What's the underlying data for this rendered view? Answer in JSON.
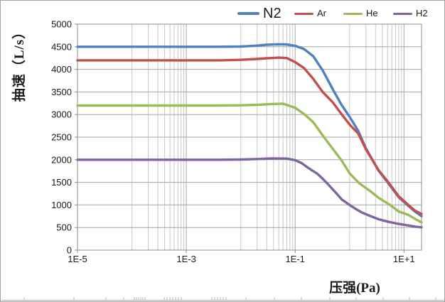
{
  "chart_data": {
    "type": "line",
    "title": "",
    "legend": {
      "position": "top",
      "entries": [
        "N2",
        "Ar",
        "He",
        "H2"
      ]
    },
    "x_axis": {
      "label": "压强(Pa)",
      "scale": "log",
      "min": 1e-05,
      "max": 21,
      "major_ticks": [
        {
          "label": "1E-5",
          "value": 1e-05
        },
        {
          "label": "1E-3",
          "value": 0.001
        },
        {
          "label": "1E-1",
          "value": 0.1
        },
        {
          "label": "1E+1",
          "value": 10
        }
      ],
      "minor_gridlines": [
        0.0001,
        0.0002,
        0.0003,
        0.0004,
        0.0005,
        0.0006,
        0.0007,
        0.0008,
        0.0009,
        0.01,
        0.02,
        0.03,
        0.04,
        0.05,
        0.06,
        0.07,
        0.08,
        0.09,
        1,
        2,
        3,
        4,
        5,
        6,
        7,
        8,
        9
      ]
    },
    "y_axis": {
      "label": "抽速（L/s）",
      "min": 0,
      "max": 5000,
      "tick_step": 500,
      "tick_labels": [
        "0",
        "500",
        "1000",
        "1500",
        "2000",
        "2500",
        "3000",
        "3500",
        "4000",
        "4500",
        "5000"
      ]
    },
    "grid_color_major": "#a6a6a6",
    "grid_color_minor": "#c9c9c9",
    "axis_color": "#8c8c8c",
    "series": [
      {
        "name": "N2",
        "color": "#4F81BD",
        "points": [
          [
            1e-05,
            4500
          ],
          [
            0.0001,
            4500
          ],
          [
            0.001,
            4500
          ],
          [
            0.004,
            4500
          ],
          [
            0.01,
            4505
          ],
          [
            0.02,
            4525
          ],
          [
            0.03,
            4545
          ],
          [
            0.05,
            4555
          ],
          [
            0.07,
            4550
          ],
          [
            0.1,
            4520
          ],
          [
            0.145,
            4450
          ],
          [
            0.215,
            4290
          ],
          [
            0.32,
            3980
          ],
          [
            0.49,
            3560
          ],
          [
            0.7,
            3230
          ],
          [
            1,
            2950
          ],
          [
            1.44,
            2640
          ],
          [
            2,
            2250
          ],
          [
            3.4,
            1760
          ],
          [
            5,
            1500
          ],
          [
            8,
            1170
          ],
          [
            12,
            980
          ],
          [
            16,
            850
          ],
          [
            21,
            750
          ]
        ]
      },
      {
        "name": "Ar",
        "color": "#C0504D",
        "points": [
          [
            1e-05,
            4200
          ],
          [
            0.0001,
            4200
          ],
          [
            0.001,
            4200
          ],
          [
            0.004,
            4200
          ],
          [
            0.01,
            4210
          ],
          [
            0.02,
            4230
          ],
          [
            0.03,
            4245
          ],
          [
            0.05,
            4260
          ],
          [
            0.07,
            4250
          ],
          [
            0.1,
            4160
          ],
          [
            0.145,
            4030
          ],
          [
            0.215,
            3790
          ],
          [
            0.32,
            3500
          ],
          [
            0.49,
            3270
          ],
          [
            0.7,
            3020
          ],
          [
            1,
            2780
          ],
          [
            1.44,
            2580
          ],
          [
            2,
            2230
          ],
          [
            3.4,
            1770
          ],
          [
            5,
            1520
          ],
          [
            8,
            1190
          ],
          [
            12,
            1000
          ],
          [
            16,
            870
          ],
          [
            21,
            800
          ]
        ]
      },
      {
        "name": "He",
        "color": "#9BBB59",
        "points": [
          [
            1e-05,
            3200
          ],
          [
            0.0001,
            3200
          ],
          [
            0.001,
            3200
          ],
          [
            0.004,
            3200
          ],
          [
            0.01,
            3205
          ],
          [
            0.02,
            3215
          ],
          [
            0.04,
            3235
          ],
          [
            0.06,
            3240
          ],
          [
            0.1,
            3150
          ],
          [
            0.15,
            3000
          ],
          [
            0.215,
            2830
          ],
          [
            0.32,
            2540
          ],
          [
            0.49,
            2240
          ],
          [
            0.7,
            2000
          ],
          [
            1,
            1700
          ],
          [
            1.5,
            1480
          ],
          [
            2.4,
            1305
          ],
          [
            3.5,
            1150
          ],
          [
            5.3,
            1015
          ],
          [
            8,
            855
          ],
          [
            12,
            780
          ],
          [
            16,
            690
          ],
          [
            21,
            615
          ]
        ]
      },
      {
        "name": "H2",
        "color": "#8064A2",
        "points": [
          [
            1e-05,
            2000
          ],
          [
            0.0001,
            2000
          ],
          [
            0.001,
            2000
          ],
          [
            0.004,
            2000
          ],
          [
            0.01,
            2005
          ],
          [
            0.02,
            2015
          ],
          [
            0.04,
            2030
          ],
          [
            0.07,
            2025
          ],
          [
            0.1,
            1990
          ],
          [
            0.13,
            1930
          ],
          [
            0.16,
            1850
          ],
          [
            0.2,
            1770
          ],
          [
            0.25,
            1700
          ],
          [
            0.32,
            1580
          ],
          [
            0.4,
            1460
          ],
          [
            0.55,
            1280
          ],
          [
            0.72,
            1120
          ],
          [
            1,
            1000
          ],
          [
            1.3,
            910
          ],
          [
            1.7,
            830
          ],
          [
            2.4,
            755
          ],
          [
            3.5,
            680
          ],
          [
            5.3,
            625
          ],
          [
            8,
            580
          ],
          [
            12,
            545
          ],
          [
            16,
            520
          ],
          [
            21,
            505
          ]
        ]
      }
    ]
  }
}
